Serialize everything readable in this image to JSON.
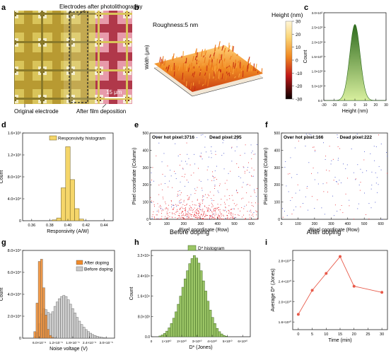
{
  "colors": {
    "responsivity": "#f5d66a",
    "after_doping": "#f08a2a",
    "before_doping": "#c9c9c9",
    "dstar": "#9bc566",
    "hot": "#e8212a",
    "dead": "#3a48c8",
    "line_i": "#e85a4a"
  },
  "panels": {
    "a": {
      "letter": "a",
      "top_label": "Electrodes after photolithography",
      "scale": "15 μm",
      "bottom_left": "Original electrode",
      "bottom_right": "After film deposition"
    },
    "b": {
      "letter": "b",
      "roughness": "Roughness:5 nm",
      "ytitle": "Width (μm)",
      "colorbar_title": "Height (nm)",
      "colorbar_ticks": [
        "30",
        "20",
        "10",
        "0",
        "-10",
        "-20",
        "-30"
      ]
    },
    "c": {
      "letter": "c"
    },
    "d": {
      "letter": "d"
    },
    "e": {
      "letter": "e",
      "caption": "Before doping"
    },
    "f": {
      "letter": "f",
      "caption": "After doping"
    },
    "g": {
      "letter": "g"
    },
    "h": {
      "letter": "h"
    },
    "i": {
      "letter": "i"
    }
  },
  "chart_data": [
    {
      "panel": "c",
      "type": "area",
      "xlabel": "Height (nm)",
      "ylabel": "Count",
      "xlim": [
        -30,
        30
      ],
      "ylim": [
        0,
        3000.0
      ],
      "xticks": [
        "-30",
        "-20",
        "-10",
        "0",
        "10",
        "20",
        "30"
      ],
      "yticks": [
        "0.0",
        "5.0×10²",
        "1.0×10³",
        "1.5×10³",
        "2.0×10³",
        "2.5×10³",
        "3.0×10³"
      ],
      "peak": {
        "x": 0,
        "y": 2600
      },
      "sigma": 5
    },
    {
      "panel": "d",
      "type": "bar",
      "legend": "Responsivity histogram",
      "xlabel": "Responsivity (A/W)",
      "ylabel": "Count",
      "xlim": [
        0.35,
        0.45
      ],
      "ylim": [
        0,
        160000.0
      ],
      "xticks": [
        "0.36",
        "0.38",
        "0.40",
        "0.42",
        "0.44"
      ],
      "yticks": [
        "0",
        "4.0×10⁴",
        "8.0×10⁴",
        "1.2×10⁵",
        "1.6×10⁵"
      ],
      "bins": [
        0.385,
        0.39,
        0.395,
        0.4,
        0.405,
        0.41,
        0.415
      ],
      "bin_width": 0.005,
      "values": [
        1500,
        5000,
        60000,
        135000,
        75000,
        22000,
        3000
      ]
    },
    {
      "panel": "e",
      "type": "scatter",
      "legend_hot": "Over hot pixel:3716",
      "legend_dead": "Dead pixel:295",
      "hot_count": 3716,
      "dead_count": 295,
      "xlabel": "Pixel coordinate (Row)",
      "ylabel": "Pixel coordinate (Column)",
      "xlim": [
        0,
        640
      ],
      "ylim": [
        0,
        512
      ],
      "xticks": [
        "0",
        "100",
        "200",
        "300",
        "400",
        "500",
        "600"
      ],
      "yticks": [
        "0",
        "100",
        "200",
        "300",
        "400",
        "500"
      ]
    },
    {
      "panel": "f",
      "type": "scatter",
      "legend_hot": "Over hot pixel:166",
      "legend_dead": "Dead pixel:222",
      "hot_count": 166,
      "dead_count": 222,
      "xlabel": "Pixel coordinate (Row)",
      "ylabel": "Pixel coordinate (Column)",
      "xlim": [
        0,
        640
      ],
      "ylim": [
        0,
        512
      ],
      "xticks": [
        "0",
        "100",
        "200",
        "300",
        "400",
        "500",
        "600"
      ],
      "yticks": [
        "0",
        "100",
        "200",
        "300",
        "400",
        "500"
      ]
    },
    {
      "panel": "g",
      "type": "bar",
      "xlabel": "Noise voltage (V)",
      "ylabel": "Count",
      "xlim": [
        0,
        3.3e-05
      ],
      "ylim": [
        0,
        80000.0
      ],
      "xticks": [
        "6.0×10⁻⁶",
        "1.2×10⁻⁵",
        "1.8×10⁻⁵",
        "2.4×10⁻⁵",
        "3.0×10⁻⁵"
      ],
      "xtick_values": [
        6e-06,
        1.2e-05,
        1.8e-05,
        2.4e-05,
        3e-05
      ],
      "yticks": [
        "0",
        "2.0×10⁴",
        "4.0×10⁴",
        "6.0×10⁴",
        "8.0×10⁴"
      ],
      "bin_width": 8e-07,
      "series": [
        {
          "name": "Before doping",
          "bin_start": 4e-06,
          "values": [
            1500,
            5000,
            13000,
            22000,
            27000,
            26000,
            23500,
            22000,
            24000,
            29000,
            33000,
            36000,
            38000,
            39000,
            38000,
            35000,
            31000,
            27000,
            23000,
            19000,
            15500,
            12500,
            10000,
            7800,
            6000,
            4500,
            3300,
            2400,
            1700,
            1200,
            800,
            500
          ]
        },
        {
          "name": "After doping",
          "bin_start": 4e-06,
          "values": [
            6000,
            32000,
            70000,
            72000,
            46000,
            21000,
            8000,
            2500,
            700,
            200
          ]
        }
      ]
    },
    {
      "panel": "h",
      "type": "bar",
      "legend": "D* histogram",
      "xlabel": "D* (Jones)",
      "ylabel": "Count",
      "xlim": [
        0,
        65000000000.0
      ],
      "ylim": [
        0,
        34000.0
      ],
      "xticks": [
        "0",
        "1×10¹⁰",
        "2×10¹⁰",
        "3×10¹⁰",
        "4×10¹⁰",
        "5×10¹⁰",
        "6×10¹⁰"
      ],
      "yticks": [
        "0.0",
        "8.0×10³",
        "1.6×10⁴",
        "2.4×10⁴",
        "3.2×10⁴"
      ],
      "bin_start": 5000000000.0,
      "bin_width": 1500000000.0,
      "values": [
        300,
        700,
        1300,
        2200,
        3500,
        5200,
        7300,
        9800,
        12800,
        16000,
        19500,
        22800,
        26000,
        28800,
        30800,
        32000,
        31000,
        29000,
        26000,
        22000,
        18000,
        14000,
        10500,
        7600,
        5200,
        3300,
        2000,
        1100,
        500,
        200
      ]
    },
    {
      "panel": "i",
      "type": "line",
      "xlabel": "Time (min)",
      "ylabel": "Average D* (Jones)",
      "xlim": [
        -2,
        32
      ],
      "ylim": [
        14500000000.0,
        30000000000.0
      ],
      "xticks": [
        "0",
        "5",
        "10",
        "15",
        "20",
        "25",
        "30"
      ],
      "yticks": [
        "1.6×10¹⁰",
        "2.0×10¹⁰",
        "2.4×10¹⁰",
        "2.8×10¹⁰"
      ],
      "ytick_values": [
        16000000000.0,
        20000000000.0,
        24000000000.0,
        28000000000.0
      ],
      "x": [
        0,
        5,
        10,
        15,
        20,
        30
      ],
      "y": [
        17500000000.0,
        22200000000.0,
        25500000000.0,
        28800000000.0,
        23000000000.0,
        21800000000.0
      ]
    }
  ]
}
